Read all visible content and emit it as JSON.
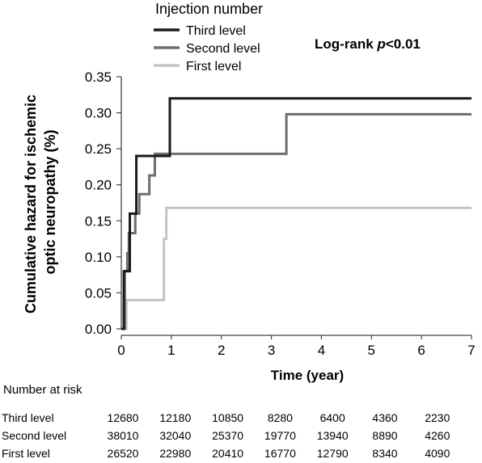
{
  "chart_data": {
    "type": "line",
    "step": true,
    "xlabel": "Time (year)",
    "ylabel": "Cumulative hazard for ischemic optic neuropathy (%)",
    "xlim": [
      0,
      7
    ],
    "ylim": [
      0,
      0.35
    ],
    "x_ticks": [
      "0",
      "1",
      "2",
      "3",
      "4",
      "5",
      "6",
      "7"
    ],
    "y_ticks": [
      "0.00",
      "0.05",
      "0.10",
      "0.15",
      "0.20",
      "0.25",
      "0.30",
      "0.35"
    ],
    "grid": false,
    "legend_title": "Injection number",
    "legend_position": "top",
    "annotation": {
      "prefix": "Log-rank ",
      "italic": "p",
      "suffix": "<0.01"
    },
    "series": [
      {
        "name": "Third level",
        "color": "#1a1a1a",
        "points": [
          [
            0,
            0
          ],
          [
            0.05,
            0.08
          ],
          [
            0.17,
            0.16
          ],
          [
            0.3,
            0.24
          ],
          [
            0.97,
            0.32
          ],
          [
            7,
            0.32
          ]
        ]
      },
      {
        "name": "Second level",
        "color": "#6e6e6e",
        "points": [
          [
            0,
            0
          ],
          [
            0.07,
            0.08
          ],
          [
            0.12,
            0.105
          ],
          [
            0.15,
            0.133
          ],
          [
            0.28,
            0.16
          ],
          [
            0.36,
            0.187
          ],
          [
            0.56,
            0.213
          ],
          [
            0.67,
            0.243
          ],
          [
            3.3,
            0.298
          ],
          [
            7,
            0.298
          ]
        ]
      },
      {
        "name": "First level",
        "color": "#c4c4c4",
        "points": [
          [
            0,
            0
          ],
          [
            0.1,
            0.04
          ],
          [
            0.85,
            0.125
          ],
          [
            0.9,
            0.168
          ],
          [
            7,
            0.168
          ]
        ]
      }
    ]
  },
  "risk_table": {
    "title": "Number  at risk",
    "rows": [
      {
        "label": "Third level",
        "values": [
          "12680",
          "12180",
          "10850",
          "8280",
          "6400",
          "4360",
          "2230"
        ]
      },
      {
        "label": "Second level",
        "values": [
          "38010",
          "32040",
          "25370",
          "19770",
          "13940",
          "8890",
          "4260"
        ]
      },
      {
        "label": "First level",
        "values": [
          "26520",
          "22980",
          "20410",
          "16770",
          "12790",
          "8340",
          "4090"
        ]
      }
    ]
  }
}
